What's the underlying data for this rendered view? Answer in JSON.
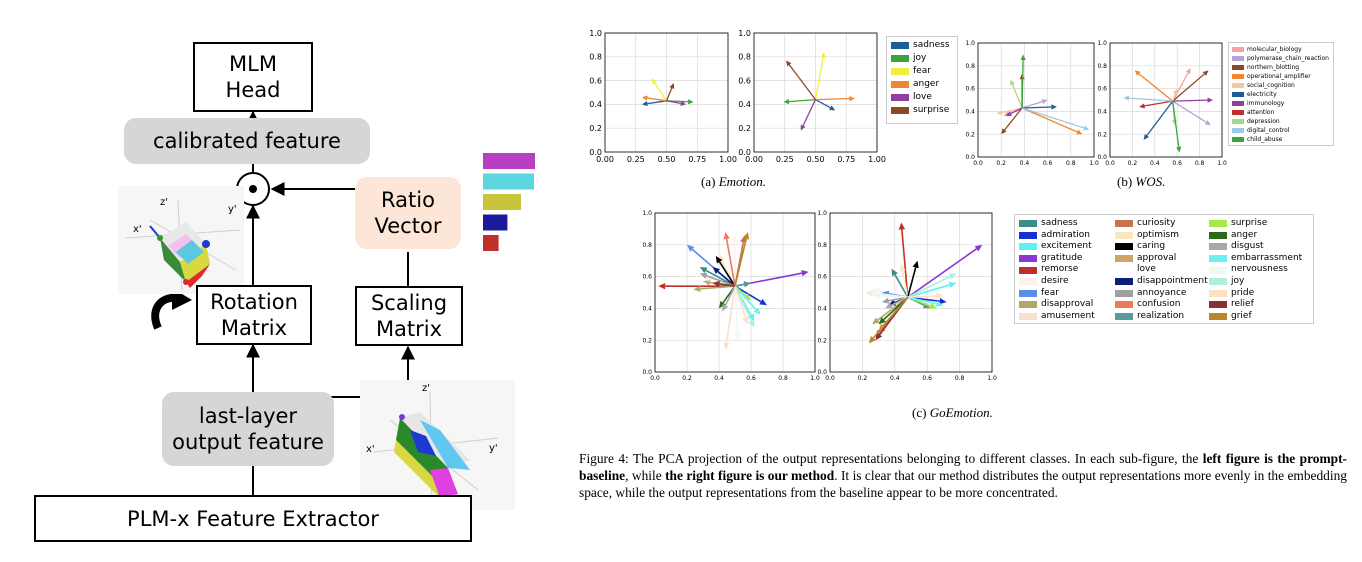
{
  "diagram": {
    "mlm_head": "MLM\nHead",
    "calibrated_feature": "calibrated feature",
    "ratio_vector": "Ratio\nVector",
    "rotation_matrix": "Rotation\nMatrix",
    "scaling_matrix": "Scaling\nMatrix",
    "last_layer": "last-layer\noutput feature",
    "plm": "PLM-x Feature Extractor",
    "odot": "⊙",
    "axis_labels": {
      "z": "z'",
      "x": "x'",
      "y": "y'"
    },
    "ratio_bar_colors": [
      "#b83fc2",
      "#5cd6df",
      "#c9c43a",
      "#1b1b9a",
      "#c0302a"
    ],
    "ratio_bar_fractions": [
      1.0,
      0.98,
      0.73,
      0.47,
      0.3
    ]
  },
  "subfig_labels": {
    "emotion": {
      "prefix": "(a) ",
      "name": "Emotion."
    },
    "wos": {
      "prefix": "(b) ",
      "name": "WOS."
    },
    "goemotion": {
      "prefix": "(c) ",
      "name": "GoEmotion."
    }
  },
  "caption": {
    "part1": "Figure 4: The PCA projection of the output representations belonging to different classes. In each sub-figure, the ",
    "bold1": "left figure is the prompt-baseline",
    "part2": ", while ",
    "bold2": "the right figure is our method",
    "part3": ". It is clear that our method distributes the output representations more evenly in the embedding space, while the output representations from the baseline appear to be more concentrated."
  },
  "chart_data": [
    {
      "type": "line",
      "name": "Emotion baseline",
      "xlim": [
        0,
        1
      ],
      "ylim": [
        0,
        1
      ],
      "xticks": [
        "0.00",
        "0.25",
        "0.50",
        "0.75",
        "1.00"
      ],
      "yticks": [
        "0.0",
        "0.2",
        "0.4",
        "0.6",
        "0.8",
        "1.0"
      ],
      "grid": true,
      "origin": [
        0.5,
        0.43
      ],
      "series": [
        {
          "name": "sadness",
          "color": "#1f5d99",
          "tip": [
            0.3,
            0.4
          ]
        },
        {
          "name": "joy",
          "color": "#3aa63a",
          "tip": [
            0.72,
            0.42
          ]
        },
        {
          "name": "fear",
          "color": "#f0ef3e",
          "tip": [
            0.38,
            0.62
          ]
        },
        {
          "name": "anger",
          "color": "#f0872f",
          "tip": [
            0.3,
            0.46
          ]
        },
        {
          "name": "love",
          "color": "#8e3fa0",
          "tip": [
            0.66,
            0.4
          ]
        },
        {
          "name": "surprise",
          "color": "#8b4a24",
          "tip": [
            0.56,
            0.58
          ]
        }
      ]
    },
    {
      "type": "line",
      "name": "Emotion ours",
      "xlim": [
        0,
        1
      ],
      "ylim": [
        0,
        1
      ],
      "xticks": [
        "0.00",
        "0.25",
        "0.50",
        "0.75",
        "1.00"
      ],
      "yticks": [
        "0.0",
        "0.2",
        "0.4",
        "0.6",
        "0.8",
        "1.0"
      ],
      "grid": true,
      "origin": [
        0.5,
        0.44
      ],
      "series": [
        {
          "name": "sadness",
          "color": "#1f5d99",
          "tip": [
            0.66,
            0.35
          ]
        },
        {
          "name": "joy",
          "color": "#3aa63a",
          "tip": [
            0.24,
            0.42
          ]
        },
        {
          "name": "fear",
          "color": "#f0ef3e",
          "tip": [
            0.57,
            0.84
          ]
        },
        {
          "name": "anger",
          "color": "#f0872f",
          "tip": [
            0.82,
            0.45
          ]
        },
        {
          "name": "love",
          "color": "#8e3fa0",
          "tip": [
            0.38,
            0.18
          ]
        },
        {
          "name": "surprise",
          "color": "#8b4a24",
          "tip": [
            0.26,
            0.77
          ]
        }
      ],
      "legend": [
        "sadness",
        "joy",
        "fear",
        "anger",
        "love",
        "surprise"
      ]
    },
    {
      "type": "line",
      "name": "WOS baseline",
      "xlim": [
        0,
        1
      ],
      "ylim": [
        0,
        1
      ],
      "xticks": [
        "0.0",
        "0.2",
        "0.4",
        "0.6",
        "0.8",
        "1.0"
      ],
      "yticks": [
        "0.0",
        "0.2",
        "0.4",
        "0.6",
        "0.8",
        "1.0"
      ],
      "grid": true,
      "origin": [
        0.38,
        0.43
      ],
      "series": [
        {
          "name": "molecular_biology",
          "color": "#f3a3a3",
          "tip": [
            0.22,
            0.36
          ]
        },
        {
          "name": "polymerase_chain_reaction",
          "color": "#b7a4d6",
          "tip": [
            0.6,
            0.5
          ]
        },
        {
          "name": "northern_blotting",
          "color": "#8b4a24",
          "tip": [
            0.2,
            0.2
          ]
        },
        {
          "name": "operational_amplifier",
          "color": "#f0872f",
          "tip": [
            0.9,
            0.2
          ]
        },
        {
          "name": "social_cognition",
          "color": "#f5c7a0",
          "tip": [
            0.16,
            0.38
          ]
        },
        {
          "name": "electricity",
          "color": "#1f5d99",
          "tip": [
            0.68,
            0.44
          ]
        },
        {
          "name": "immunology",
          "color": "#8e3fa0",
          "tip": [
            0.24,
            0.36
          ]
        },
        {
          "name": "attention",
          "color": "#c0302a",
          "tip": [
            0.38,
            0.73
          ]
        },
        {
          "name": "depression",
          "color": "#a6d88a",
          "tip": [
            0.28,
            0.68
          ]
        },
        {
          "name": "digital_control",
          "color": "#9ec8e6",
          "tip": [
            0.96,
            0.24
          ]
        },
        {
          "name": "child_abuse",
          "color": "#3aa63a",
          "tip": [
            0.39,
            0.9
          ]
        }
      ]
    },
    {
      "type": "line",
      "name": "WOS ours",
      "xlim": [
        0,
        1
      ],
      "ylim": [
        0,
        1
      ],
      "xticks": [
        "0.0",
        "0.2",
        "0.4",
        "0.6",
        "0.8",
        "1.0"
      ],
      "yticks": [
        "0.0",
        "0.2",
        "0.4",
        "0.6",
        "0.8",
        "1.0"
      ],
      "grid": true,
      "origin": [
        0.56,
        0.49
      ],
      "series": [
        {
          "name": "molecular_biology",
          "color": "#f3a3a3",
          "tip": [
            0.72,
            0.78
          ]
        },
        {
          "name": "polymerase_chain_reaction",
          "color": "#b7a4d6",
          "tip": [
            0.9,
            0.28
          ]
        },
        {
          "name": "northern_blotting",
          "color": "#8b4a24",
          "tip": [
            0.88,
            0.76
          ]
        },
        {
          "name": "operational_amplifier",
          "color": "#f0872f",
          "tip": [
            0.22,
            0.76
          ]
        },
        {
          "name": "social_cognition",
          "color": "#f5c7a0",
          "tip": [
            0.6,
            0.6
          ]
        },
        {
          "name": "electricity",
          "color": "#1f5d99",
          "tip": [
            0.3,
            0.15
          ]
        },
        {
          "name": "immunology",
          "color": "#8e3fa0",
          "tip": [
            0.92,
            0.5
          ]
        },
        {
          "name": "attention",
          "color": "#c0302a",
          "tip": [
            0.26,
            0.44
          ]
        },
        {
          "name": "depression",
          "color": "#a6d88a",
          "tip": [
            0.58,
            0.28
          ]
        },
        {
          "name": "digital_control",
          "color": "#9ec8e6",
          "tip": [
            0.12,
            0.52
          ]
        },
        {
          "name": "child_abuse",
          "color": "#3aa63a",
          "tip": [
            0.62,
            0.04
          ]
        }
      ],
      "legend": [
        "molecular_biology",
        "polymerase_chain_reaction",
        "northern_blotting",
        "operational_amplifier",
        "social_cognition",
        "electricity",
        "immunology",
        "attention",
        "depression",
        "digital_control",
        "child_abuse"
      ]
    },
    {
      "type": "line",
      "name": "GoEmotion baseline",
      "xlim": [
        0,
        1
      ],
      "ylim": [
        0,
        1
      ],
      "xticks": [
        "0.0",
        "0.2",
        "0.4",
        "0.6",
        "0.8",
        "1.0"
      ],
      "yticks": [
        "0.0",
        "0.2",
        "0.4",
        "0.6",
        "0.8",
        "1.0"
      ],
      "grid": true,
      "origin": [
        0.5,
        0.54
      ],
      "series": [
        {
          "name": "sadness",
          "color": "#3d8c8c",
          "tip": [
            0.28,
            0.66
          ]
        },
        {
          "name": "admiration",
          "color": "#1432d0",
          "tip": [
            0.7,
            0.42
          ]
        },
        {
          "name": "excitement",
          "color": "#5ff0f0",
          "tip": [
            0.62,
            0.32
          ]
        },
        {
          "name": "gratitude",
          "color": "#8a36d6",
          "tip": [
            0.96,
            0.63
          ]
        },
        {
          "name": "remorse",
          "color": "#c0302a",
          "tip": [
            0.02,
            0.54
          ]
        },
        {
          "name": "desire",
          "color": "#fff0f0",
          "tip": [
            0.5,
            0.86
          ]
        },
        {
          "name": "fear",
          "color": "#5b8ee6",
          "tip": [
            0.2,
            0.8
          ]
        },
        {
          "name": "disapproval",
          "color": "#b0aa66",
          "tip": [
            0.24,
            0.52
          ]
        },
        {
          "name": "amusement",
          "color": "#f8e0d0",
          "tip": [
            0.44,
            0.14
          ]
        },
        {
          "name": "curiosity",
          "color": "#c7744a",
          "tip": [
            0.56,
            0.86
          ]
        },
        {
          "name": "optimism",
          "color": "#fce6c0",
          "tip": [
            0.4,
            0.74
          ]
        },
        {
          "name": "caring",
          "color": "#000000",
          "tip": [
            0.38,
            0.73
          ]
        },
        {
          "name": "approval",
          "color": "#d1a36b",
          "tip": [
            0.3,
            0.57
          ]
        },
        {
          "name": "love",
          "color": "#ffffff",
          "tip": [
            0.3,
            0.6
          ]
        },
        {
          "name": "disappointment",
          "color": "#0a1e7a",
          "tip": [
            0.36,
            0.66
          ]
        },
        {
          "name": "annoyance",
          "color": "#a0a0a0",
          "tip": [
            0.28,
            0.62
          ]
        },
        {
          "name": "confusion",
          "color": "#ec7a5a",
          "tip": [
            0.44,
            0.88
          ]
        },
        {
          "name": "realization",
          "color": "#5a9a9a",
          "tip": [
            0.6,
            0.56
          ]
        },
        {
          "name": "surprise",
          "color": "#a6ea4a",
          "tip": [
            0.6,
            0.45
          ]
        },
        {
          "name": "anger",
          "color": "#2a6a1a",
          "tip": [
            0.4,
            0.4
          ]
        },
        {
          "name": "disgust",
          "color": "#a8a8a8",
          "tip": [
            0.42,
            0.38
          ]
        },
        {
          "name": "embarrassment",
          "color": "#6df0f0",
          "tip": [
            0.66,
            0.36
          ]
        },
        {
          "name": "nervousness",
          "color": "#f0f8f0",
          "tip": [
            0.52,
            0.2
          ]
        },
        {
          "name": "joy",
          "color": "#aef0e0",
          "tip": [
            0.62,
            0.28
          ]
        },
        {
          "name": "pride",
          "color": "#fde0c0",
          "tip": [
            0.58,
            0.3
          ]
        },
        {
          "name": "relief",
          "color": "#8a3030",
          "tip": [
            0.36,
            0.56
          ]
        },
        {
          "name": "grief",
          "color": "#b7862a",
          "tip": [
            0.58,
            0.88
          ]
        }
      ]
    },
    {
      "type": "line",
      "name": "GoEmotion ours",
      "xlim": [
        0,
        1
      ],
      "ylim": [
        0,
        1
      ],
      "xticks": [
        "0.0",
        "0.2",
        "0.4",
        "0.6",
        "0.8",
        "1.0"
      ],
      "yticks": [
        "0.0",
        "0.2",
        "0.4",
        "0.6",
        "0.8",
        "1.0"
      ],
      "grid": true,
      "origin": [
        0.48,
        0.47
      ],
      "series": [
        {
          "name": "sadness",
          "color": "#3d8c8c",
          "tip": [
            0.38,
            0.65
          ]
        },
        {
          "name": "admiration",
          "color": "#1432d0",
          "tip": [
            0.72,
            0.44
          ]
        },
        {
          "name": "excitement",
          "color": "#5ff0f0",
          "tip": [
            0.78,
            0.56
          ]
        },
        {
          "name": "gratitude",
          "color": "#8a36d6",
          "tip": [
            0.94,
            0.8
          ]
        },
        {
          "name": "remorse",
          "color": "#c0302a",
          "tip": [
            0.44,
            0.94
          ]
        },
        {
          "name": "desire",
          "color": "#fff0f0",
          "tip": [
            0.26,
            0.52
          ]
        },
        {
          "name": "fear",
          "color": "#5b8ee6",
          "tip": [
            0.32,
            0.5
          ]
        },
        {
          "name": "disapproval",
          "color": "#b0aa66",
          "tip": [
            0.26,
            0.3
          ]
        },
        {
          "name": "amusement",
          "color": "#f8e0d0",
          "tip": [
            0.22,
            0.5
          ]
        },
        {
          "name": "curiosity",
          "color": "#c7744a",
          "tip": [
            0.28,
            0.22
          ]
        },
        {
          "name": "optimism",
          "color": "#fce6c0",
          "tip": [
            0.44,
            0.68
          ]
        },
        {
          "name": "caring",
          "color": "#000000",
          "tip": [
            0.54,
            0.7
          ]
        },
        {
          "name": "approval",
          "color": "#d1a36b",
          "tip": [
            0.3,
            0.26
          ]
        },
        {
          "name": "love",
          "color": "#ffffff",
          "tip": [
            0.26,
            0.48
          ]
        },
        {
          "name": "disappointment",
          "color": "#0a1e7a",
          "tip": [
            0.36,
            0.42
          ]
        },
        {
          "name": "annoyance",
          "color": "#a0a0a0",
          "tip": [
            0.32,
            0.44
          ]
        },
        {
          "name": "confusion",
          "color": "#ec7a5a",
          "tip": [
            0.3,
            0.24
          ]
        },
        {
          "name": "realization",
          "color": "#5a9a9a",
          "tip": [
            0.62,
            0.4
          ]
        },
        {
          "name": "surprise",
          "color": "#a6ea4a",
          "tip": [
            0.66,
            0.4
          ]
        },
        {
          "name": "anger",
          "color": "#2a6a1a",
          "tip": [
            0.3,
            0.3
          ]
        },
        {
          "name": "disgust",
          "color": "#a8a8a8",
          "tip": [
            0.34,
            0.4
          ]
        },
        {
          "name": "embarrassment",
          "color": "#6df0f0",
          "tip": [
            0.7,
            0.42
          ]
        },
        {
          "name": "nervousness",
          "color": "#f0f8f0",
          "tip": [
            0.24,
            0.5
          ]
        },
        {
          "name": "joy",
          "color": "#aef0e0",
          "tip": [
            0.78,
            0.62
          ]
        },
        {
          "name": "pride",
          "color": "#fde0c0",
          "tip": [
            0.7,
            0.48
          ]
        },
        {
          "name": "relief",
          "color": "#8a3030",
          "tip": [
            0.28,
            0.2
          ]
        },
        {
          "name": "grief",
          "color": "#b7862a",
          "tip": [
            0.24,
            0.18
          ]
        }
      ],
      "legend": [
        "sadness",
        "admiration",
        "excitement",
        "gratitude",
        "remorse",
        "desire",
        "fear",
        "disapproval",
        "amusement",
        "curiosity",
        "optimism",
        "caring",
        "approval",
        "love",
        "disappointment",
        "annoyance",
        "confusion",
        "realization",
        "surprise",
        "anger",
        "disgust",
        "embarrassment",
        "nervousness",
        "joy",
        "pride",
        "relief",
        "grief"
      ]
    }
  ]
}
